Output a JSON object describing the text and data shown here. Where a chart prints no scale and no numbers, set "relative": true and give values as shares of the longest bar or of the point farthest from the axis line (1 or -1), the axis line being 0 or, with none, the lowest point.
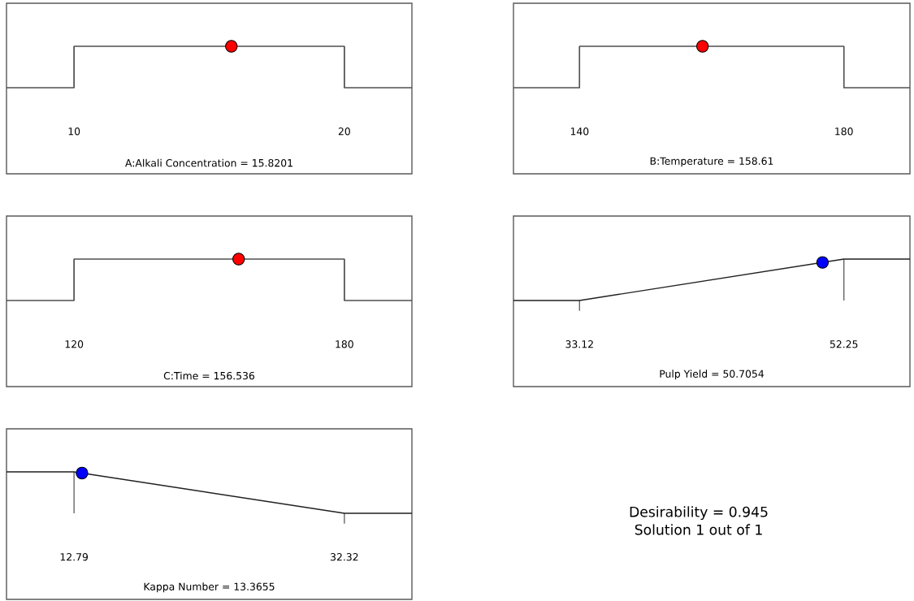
{
  "chart_data": [
    {
      "type": "line",
      "relative": true,
      "xlabel": "A:Alkali Concentration = 15.8201",
      "xlim": [
        7.5,
        22.5
      ],
      "xticks": [
        10,
        20
      ],
      "series": [
        {
          "x": [
            7.5,
            10,
            10,
            20,
            20,
            22.5
          ],
          "values": [
            0,
            0,
            1,
            1,
            0,
            0
          ],
          "color": "#505050"
        },
        {
          "type": "scatter",
          "marker": "circle",
          "x": [
            15.8201
          ],
          "values": [
            1
          ],
          "color": "#ff0000"
        }
      ]
    },
    {
      "type": "line",
      "relative": true,
      "xlabel": "B:Temperature = 158.61",
      "xlim": [
        130,
        190
      ],
      "xticks": [
        140,
        180
      ],
      "series": [
        {
          "x": [
            130,
            140,
            140,
            180,
            180,
            190
          ],
          "values": [
            0,
            0,
            1,
            1,
            0,
            0
          ],
          "color": "#505050"
        },
        {
          "type": "scatter",
          "marker": "circle",
          "x": [
            158.61
          ],
          "values": [
            1
          ],
          "color": "#ff0000"
        }
      ]
    },
    {
      "type": "line",
      "relative": true,
      "xlabel": "C:Time = 156.536",
      "xlim": [
        105,
        195
      ],
      "xticks": [
        120,
        180
      ],
      "series": [
        {
          "x": [
            105,
            120,
            120,
            180,
            180,
            195
          ],
          "values": [
            0,
            0,
            1,
            1,
            0,
            0
          ],
          "color": "#505050"
        },
        {
          "type": "scatter",
          "marker": "circle",
          "x": [
            156.536
          ],
          "values": [
            1
          ],
          "color": "#ff0000"
        }
      ]
    },
    {
      "type": "line",
      "relative": true,
      "xlabel": "Pulp Yield = 50.7054",
      "xlim": [
        28.34,
        57.03
      ],
      "xticks": [
        33.12,
        52.25
      ],
      "series": [
        {
          "x": [
            28.34,
            33.12,
            52.25,
            57.03
          ],
          "values": [
            0,
            0,
            1,
            1
          ],
          "color": "#202020"
        },
        {
          "type": "scatter",
          "marker": "circle",
          "x": [
            50.7054
          ],
          "values": [
            0.92
          ],
          "color": "#0000ff"
        }
      ]
    },
    {
      "type": "line",
      "relative": true,
      "xlabel": "Kappa Number = 13.3655",
      "xlim": [
        7.91,
        37.2
      ],
      "xticks": [
        12.79,
        32.32
      ],
      "series": [
        {
          "x": [
            7.91,
            12.79,
            32.32,
            37.2
          ],
          "values": [
            1,
            1,
            0,
            0
          ],
          "color": "#202020"
        },
        {
          "type": "scatter",
          "marker": "circle",
          "x": [
            13.3655
          ],
          "values": [
            0.97
          ],
          "color": "#0000ff"
        }
      ]
    },
    {
      "type": "other",
      "annotations": [
        "Desirability = 0.945",
        "Solution 1 out of 1"
      ]
    }
  ]
}
